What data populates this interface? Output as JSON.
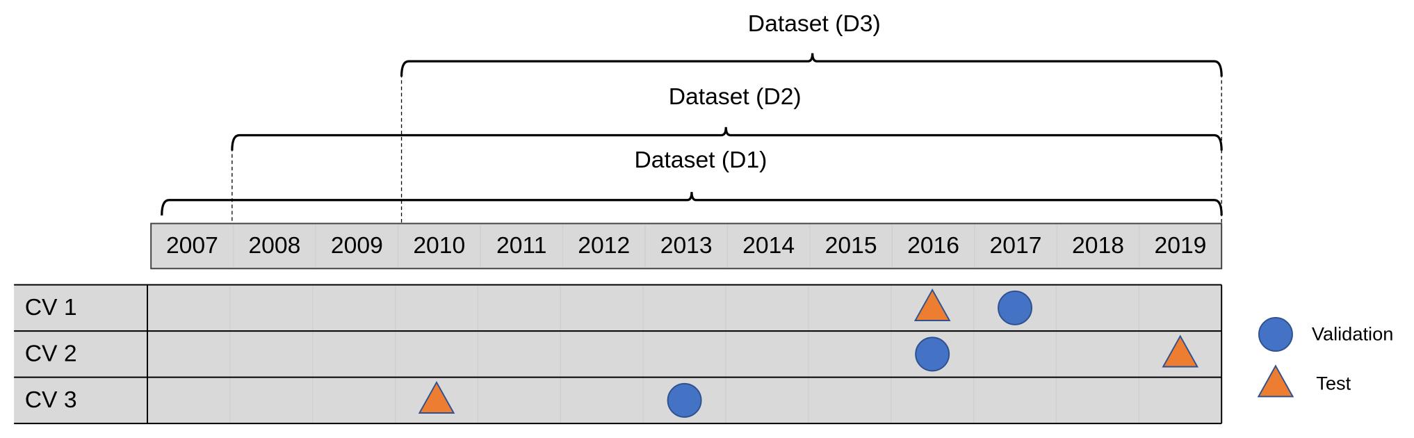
{
  "timeline": {
    "years": [
      "2007",
      "2008",
      "2009",
      "2010",
      "2011",
      "2012",
      "2013",
      "2014",
      "2015",
      "2016",
      "2017",
      "2018",
      "2019"
    ]
  },
  "datasets": [
    {
      "label": "Dataset (D1)"
    },
    {
      "label": "Dataset (D2)"
    },
    {
      "label": "Dataset (D3)"
    }
  ],
  "cv_rows": [
    {
      "label": "CV 1"
    },
    {
      "label": "CV 2"
    },
    {
      "label": "CV 3"
    }
  ],
  "legend": [
    {
      "label": "Validation"
    },
    {
      "label": "Test"
    }
  ]
}
